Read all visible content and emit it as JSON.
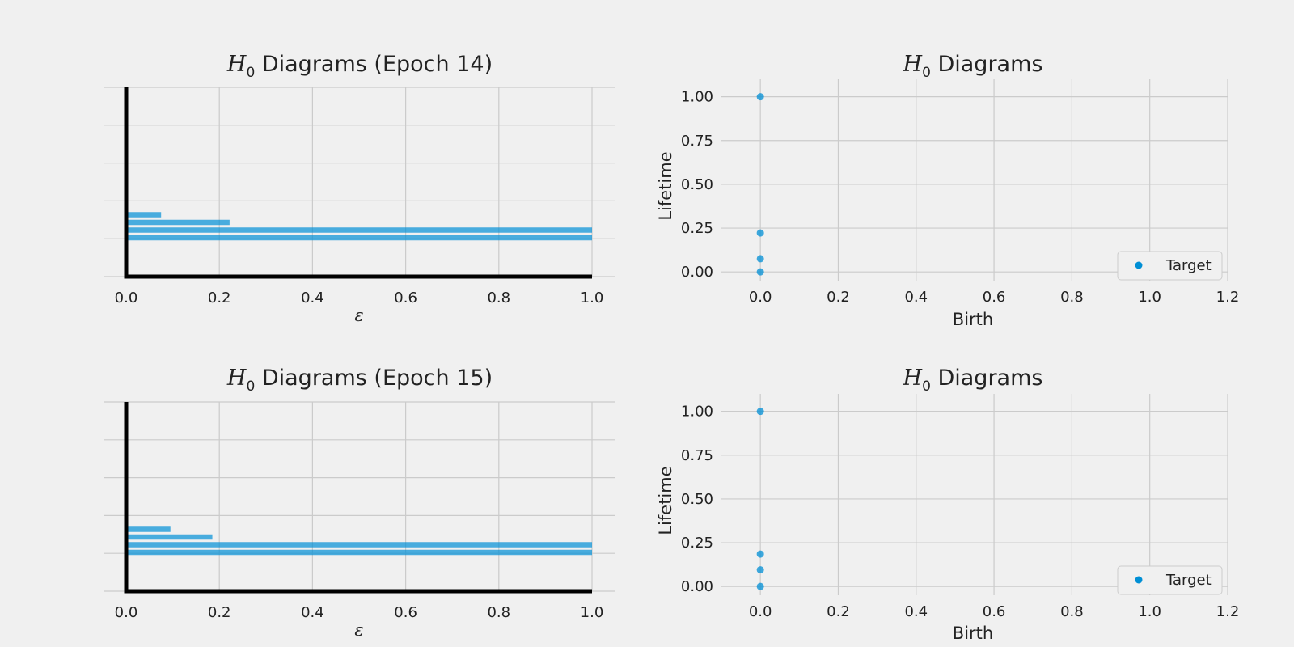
{
  "chart_data": [
    {
      "type": "bar",
      "orientation": "horizontal",
      "title_prefix": "H",
      "title_subscript": "0",
      "title_suffix": " Diagrams (Epoch 14)",
      "xlabel": "ε",
      "ylabel": "",
      "xlim": [
        0,
        1
      ],
      "xticks": [
        "0.0",
        "0.2",
        "0.4",
        "0.6",
        "0.8",
        "1.0"
      ],
      "grid": true,
      "color": "#008fd5",
      "bars": [
        1.0,
        1.0,
        0.222,
        0.075
      ]
    },
    {
      "type": "scatter",
      "title_prefix": "H",
      "title_subscript": "0",
      "title_suffix": " Diagrams",
      "xlabel": "Birth",
      "ylabel": "Lifetime",
      "xlim": [
        -0.1,
        1.2
      ],
      "ylim": [
        -0.05,
        1.1
      ],
      "xticks": [
        "0.0",
        "0.2",
        "0.4",
        "0.6",
        "0.8",
        "1.0",
        "1.2"
      ],
      "yticks": [
        "0.00",
        "0.25",
        "0.50",
        "0.75",
        "1.00"
      ],
      "grid": true,
      "legend": {
        "label": "Target",
        "position": "lower-right"
      },
      "color": "#008fd5",
      "points": [
        {
          "x": 0.0,
          "y": 1.0
        },
        {
          "x": 0.0,
          "y": 0.222
        },
        {
          "x": 0.0,
          "y": 0.075
        },
        {
          "x": 0.0,
          "y": 0.0
        }
      ]
    },
    {
      "type": "bar",
      "orientation": "horizontal",
      "title_prefix": "H",
      "title_subscript": "0",
      "title_suffix": " Diagrams (Epoch 15)",
      "xlabel": "ε",
      "ylabel": "",
      "xlim": [
        0,
        1
      ],
      "xticks": [
        "0.0",
        "0.2",
        "0.4",
        "0.6",
        "0.8",
        "1.0"
      ],
      "grid": true,
      "color": "#008fd5",
      "bars": [
        1.0,
        1.0,
        0.185,
        0.095
      ]
    },
    {
      "type": "scatter",
      "title_prefix": "H",
      "title_subscript": "0",
      "title_suffix": " Diagrams",
      "xlabel": "Birth",
      "ylabel": "Lifetime",
      "xlim": [
        -0.1,
        1.2
      ],
      "ylim": [
        -0.05,
        1.1
      ],
      "xticks": [
        "0.0",
        "0.2",
        "0.4",
        "0.6",
        "0.8",
        "1.0",
        "1.2"
      ],
      "yticks": [
        "0.00",
        "0.25",
        "0.50",
        "0.75",
        "1.00"
      ],
      "grid": true,
      "legend": {
        "label": "Target",
        "position": "lower-right"
      },
      "color": "#008fd5",
      "points": [
        {
          "x": 0.0,
          "y": 1.0
        },
        {
          "x": 0.0,
          "y": 0.185
        },
        {
          "x": 0.0,
          "y": 0.095
        },
        {
          "x": 0.0,
          "y": 0.0
        }
      ]
    }
  ]
}
